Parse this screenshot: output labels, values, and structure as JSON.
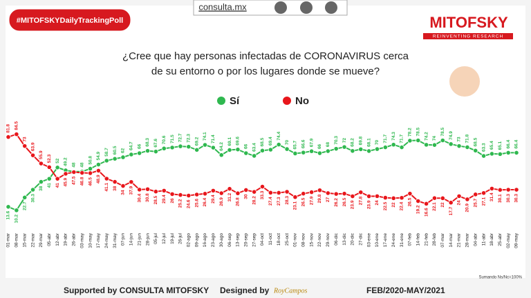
{
  "hashtag": "#MITOFSKYDailyTrackingPoll",
  "site": "consulta.mx",
  "brand": {
    "name": "MITOFSKY",
    "tagline": "REINVENTING RESEARCH"
  },
  "footer": {
    "note": "Sumando Ns/Nc=100%",
    "supported": "Supported by  CONSULTA  MITOFSKY",
    "designed": "Designed by",
    "designer": "RoyCampos",
    "period": "FEB/2020-MAY/2021"
  },
  "chart_data": {
    "type": "line",
    "title": [
      "¿Cree que hay personas infectadas de CORONAVIRUS cerca",
      "de su entorno o por los lugares donde se mueve?"
    ],
    "categories": [
      "01-mar",
      "08-mar",
      "15-mar",
      "22-mar",
      "29-mar",
      "05-abr",
      "12-abr",
      "19-abr",
      "26-abr",
      "03-may",
      "10-may",
      "17-may",
      "24-may",
      "31-may",
      "07-jun",
      "14-jun",
      "21-jun",
      "28-jun",
      "05-jul",
      "12-jul",
      "19-jul",
      "26-jul",
      "02-ago",
      "09-ago",
      "16-ago",
      "23-ago",
      "30-ago",
      "06-sep",
      "13-sep",
      "20-sep",
      "27-sep",
      "04-oct",
      "11-oct",
      "18-oct",
      "25-oct",
      "01-nov",
      "08-nov",
      "15-nov",
      "22-nov",
      "29-nov",
      "06-dic",
      "13-dic",
      "20-dic",
      "27-dic",
      "03-ene",
      "10-ene",
      "17-ene",
      "24-ene",
      "31-ene",
      "07-feb",
      "14-feb",
      "21-feb",
      "28-feb",
      "07-mar",
      "14-mar",
      "21-mar",
      "28-mar",
      "04-abr",
      "11-abr",
      "18-abr",
      "25-abr",
      "02-may",
      "09-may"
    ],
    "series": [
      {
        "name": "Sí",
        "color": "#2fb84f",
        "values": [
          13.6,
          10.2,
          22.7,
          30.3,
          38.0,
          41.0,
          52.0,
          49.2,
          48.0,
          48.0,
          50.8,
          54.9,
          58.7,
          60.5,
          62.0,
          64.7,
          66.0,
          68.3,
          67.6,
          70.6,
          71.5,
          72.7,
          72.3,
          69.2,
          74.1,
          71.4,
          64.2,
          69.1,
          69.6,
          66.0,
          63.4,
          68.5,
          69.4,
          74.4,
          70.0,
          65.7,
          66.6,
          67.9,
          66.0,
          68.0,
          70.3,
          72.0,
          68.2,
          69.8,
          68.1,
          70.0,
          71.7,
          74.3,
          71.7,
          78.2,
          78.5,
          74.2,
          74.0,
          78.5,
          74.9,
          73.0,
          71.8,
          68.5,
          63.3,
          65.4,
          65.1,
          66.4,
          66.4
        ]
      },
      {
        "name": "No",
        "color": "#e8161b",
        "values": [
          81.8,
          84.5,
          73.0,
          63.9,
          55.9,
          52.3,
          41.0,
          45.9,
          47.5,
          46.8,
          46.5,
          48.9,
          41.1,
          38.0,
          34.0,
          37.9,
          30.4,
          30.8,
          28.5,
          29.4,
          26.0,
          25.2,
          24.6,
          25.6,
          26.4,
          29.4,
          26.9,
          31.2,
          26.8,
          30.0,
          28.2,
          33.3,
          27.4,
          27.3,
          28.3,
          23.1,
          26.5,
          27.9,
          29.8,
          27.0,
          26.2,
          26.5,
          23.9,
          27.8,
          23.9,
          24.0,
          22.5,
          22.0,
          22.4,
          26.5,
          19.2,
          16.6,
          22.1,
          22.0,
          17.7,
          24.0,
          20.9,
          25.7,
          27.1,
          31.4,
          30.1,
          30.3,
          30.3
        ]
      }
    ],
    "ylim": [
      0,
      95
    ]
  }
}
